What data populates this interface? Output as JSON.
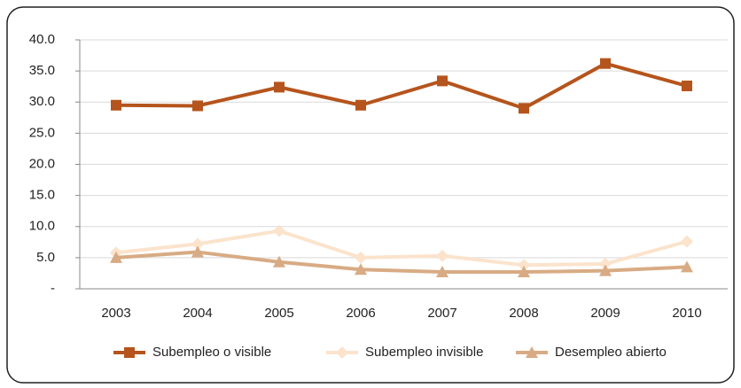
{
  "chart_data": {
    "type": "line",
    "categories": [
      "2003",
      "2004",
      "2005",
      "2006",
      "2007",
      "2008",
      "2009",
      "2010"
    ],
    "series": [
      {
        "name": "Subempleo o visible",
        "color": "#b5541c",
        "marker": "square",
        "values": [
          29.5,
          29.4,
          32.4,
          29.5,
          33.4,
          29.0,
          36.2,
          32.6
        ]
      },
      {
        "name": "Subempleo invisible",
        "color": "#fbe3cc",
        "marker": "diamond",
        "values": [
          5.8,
          7.2,
          9.3,
          5.0,
          5.3,
          3.8,
          4.0,
          7.6
        ]
      },
      {
        "name": "Desempleo abierto",
        "color": "#d8ab84",
        "marker": "triangle",
        "values": [
          5.0,
          5.9,
          4.3,
          3.1,
          2.7,
          2.7,
          2.9,
          3.5
        ]
      }
    ],
    "ylim": [
      0,
      40
    ],
    "yticks": [
      {
        "value": 0,
        "label": "-"
      },
      {
        "value": 5,
        "label": "5.0"
      },
      {
        "value": 10,
        "label": "10.0"
      },
      {
        "value": 15,
        "label": "15.0"
      },
      {
        "value": 20,
        "label": "20.0"
      },
      {
        "value": 25,
        "label": "25.0"
      },
      {
        "value": 30,
        "label": "30.0"
      },
      {
        "value": 35,
        "label": "35.0"
      },
      {
        "value": 40,
        "label": "40.0"
      }
    ],
    "grid": true,
    "legend": "bottom"
  }
}
